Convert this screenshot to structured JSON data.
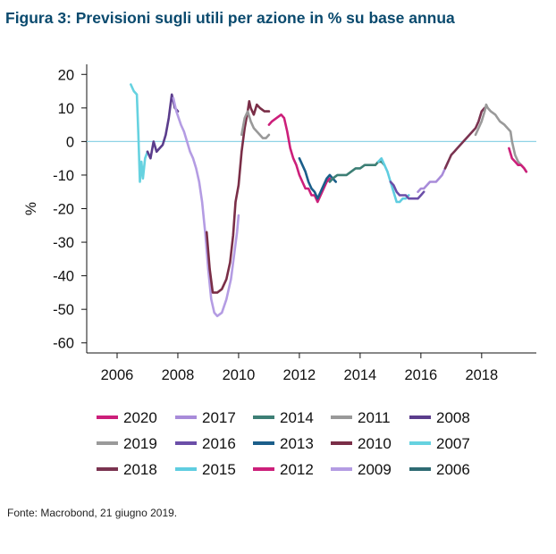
{
  "title": "Figura 3: Previsioni sugli utili per azione in % su base annua",
  "source": "Fonte: Macrobond, 21 giugno 2019.",
  "chart_data": {
    "type": "line",
    "title": "Figura 3: Previsioni sugli utili per azione in % su base annua",
    "xlabel": "",
    "ylabel": "%",
    "xlim": [
      2005.0,
      2019.8
    ],
    "ylim": [
      -63,
      23
    ],
    "xticks": [
      "2006",
      "2008",
      "2010",
      "2012",
      "2014",
      "2016",
      "2018"
    ],
    "yticks": [
      "20",
      "10",
      "0",
      "-10",
      "-20",
      "-30",
      "-40",
      "-50",
      "-60"
    ],
    "grid": false,
    "zero_line": true,
    "legend_position": "bottom",
    "series": [
      {
        "name": "2006",
        "color": "#2e6b73",
        "points": []
      },
      {
        "name": "2007",
        "color": "#66d2e0",
        "points": [
          [
            2006.45,
            17
          ],
          [
            2006.55,
            15
          ],
          [
            2006.65,
            14
          ],
          [
            2006.7,
            2
          ],
          [
            2006.75,
            -12
          ],
          [
            2006.8,
            -6
          ],
          [
            2006.85,
            -11
          ],
          [
            2006.92,
            -5
          ],
          [
            2007.0,
            -3
          ]
        ]
      },
      {
        "name": "2008",
        "color": "#5b3d8c",
        "points": [
          [
            2007.0,
            -3
          ],
          [
            2007.1,
            -5
          ],
          [
            2007.2,
            0
          ],
          [
            2007.3,
            -3
          ],
          [
            2007.4,
            -2
          ],
          [
            2007.5,
            -1
          ],
          [
            2007.6,
            2
          ],
          [
            2007.7,
            7
          ],
          [
            2007.8,
            14
          ],
          [
            2007.9,
            10
          ],
          [
            2008.0,
            9
          ]
        ]
      },
      {
        "name": "2009",
        "color": "#b49ce3",
        "points": [
          [
            2007.85,
            13
          ],
          [
            2007.95,
            9
          ],
          [
            2008.1,
            5
          ],
          [
            2008.2,
            3
          ],
          [
            2008.3,
            0
          ],
          [
            2008.4,
            -3
          ],
          [
            2008.5,
            -5
          ],
          [
            2008.6,
            -8
          ],
          [
            2008.7,
            -12
          ],
          [
            2008.8,
            -18
          ],
          [
            2008.9,
            -27
          ],
          [
            2009.0,
            -38
          ],
          [
            2009.1,
            -47
          ],
          [
            2009.2,
            -51
          ],
          [
            2009.3,
            -52
          ],
          [
            2009.45,
            -51
          ],
          [
            2009.6,
            -47
          ],
          [
            2009.75,
            -41
          ],
          [
            2009.85,
            -34
          ],
          [
            2009.95,
            -27
          ],
          [
            2010.0,
            -22
          ]
        ]
      },
      {
        "name": "2010",
        "color": "#7a2e47",
        "points": [
          [
            2008.95,
            -27
          ],
          [
            2009.05,
            -38
          ],
          [
            2009.15,
            -45
          ],
          [
            2009.3,
            -45
          ],
          [
            2009.45,
            -44
          ],
          [
            2009.6,
            -41
          ],
          [
            2009.72,
            -36
          ],
          [
            2009.82,
            -28
          ],
          [
            2009.9,
            -18
          ],
          [
            2010.0,
            -13
          ],
          [
            2010.1,
            -3
          ],
          [
            2010.2,
            4
          ],
          [
            2010.3,
            9
          ],
          [
            2010.35,
            12
          ],
          [
            2010.4,
            10
          ],
          [
            2010.5,
            8
          ],
          [
            2010.6,
            11
          ],
          [
            2010.7,
            10
          ],
          [
            2010.85,
            9
          ],
          [
            2011.0,
            9
          ]
        ]
      },
      {
        "name": "2011",
        "color": "#999999",
        "points": [
          [
            2010.1,
            2
          ],
          [
            2010.2,
            7
          ],
          [
            2010.3,
            9
          ],
          [
            2010.4,
            6
          ],
          [
            2010.5,
            4
          ],
          [
            2010.6,
            3
          ],
          [
            2010.7,
            2
          ],
          [
            2010.8,
            1
          ],
          [
            2010.9,
            1
          ],
          [
            2011.0,
            2
          ]
        ]
      },
      {
        "name": "2012",
        "color": "#cc1f7a",
        "points": [
          [
            2011.0,
            5
          ],
          [
            2011.1,
            6
          ],
          [
            2011.25,
            7
          ],
          [
            2011.4,
            8
          ],
          [
            2011.5,
            7
          ],
          [
            2011.6,
            3
          ],
          [
            2011.7,
            -2
          ],
          [
            2011.8,
            -5
          ],
          [
            2011.9,
            -7
          ],
          [
            2012.0,
            -10
          ],
          [
            2012.1,
            -12
          ],
          [
            2012.2,
            -14
          ],
          [
            2012.3,
            -14
          ],
          [
            2012.4,
            -16
          ],
          [
            2012.5,
            -16
          ],
          [
            2012.6,
            -18
          ],
          [
            2012.7,
            -16
          ],
          [
            2012.8,
            -14
          ],
          [
            2012.9,
            -12
          ],
          [
            2013.0,
            -11
          ]
        ]
      },
      {
        "name": "2013",
        "color": "#1b5e8a",
        "points": [
          [
            2012.0,
            -5
          ],
          [
            2012.1,
            -7
          ],
          [
            2012.2,
            -9
          ],
          [
            2012.3,
            -12
          ],
          [
            2012.4,
            -14
          ],
          [
            2012.5,
            -15
          ],
          [
            2012.6,
            -17
          ],
          [
            2012.7,
            -15
          ],
          [
            2012.8,
            -13
          ],
          [
            2012.9,
            -11
          ],
          [
            2013.0,
            -10
          ],
          [
            2013.1,
            -11
          ],
          [
            2013.2,
            -12
          ]
        ]
      },
      {
        "name": "2014",
        "color": "#3d7f75",
        "points": [
          [
            2013.0,
            -12
          ],
          [
            2013.1,
            -11
          ],
          [
            2013.25,
            -10
          ],
          [
            2013.4,
            -10
          ],
          [
            2013.55,
            -10
          ],
          [
            2013.7,
            -9
          ],
          [
            2013.85,
            -8
          ],
          [
            2014.0,
            -8
          ],
          [
            2014.15,
            -7
          ],
          [
            2014.3,
            -7
          ],
          [
            2014.5,
            -7
          ],
          [
            2014.6,
            -6
          ],
          [
            2014.7,
            -6
          ],
          [
            2014.8,
            -7
          ]
        ]
      },
      {
        "name": "2015",
        "color": "#5fcde0",
        "points": [
          [
            2014.6,
            -6
          ],
          [
            2014.7,
            -5
          ],
          [
            2014.8,
            -7
          ],
          [
            2014.9,
            -9
          ],
          [
            2015.0,
            -12
          ],
          [
            2015.1,
            -15
          ],
          [
            2015.2,
            -18
          ],
          [
            2015.3,
            -18
          ],
          [
            2015.4,
            -17
          ],
          [
            2015.5,
            -17
          ],
          [
            2015.6,
            -16
          ]
        ]
      },
      {
        "name": "2016",
        "color": "#6b4ea8",
        "points": [
          [
            2015.0,
            -12
          ],
          [
            2015.1,
            -13
          ],
          [
            2015.2,
            -15
          ],
          [
            2015.3,
            -16
          ],
          [
            2015.4,
            -16
          ],
          [
            2015.5,
            -16
          ],
          [
            2015.6,
            -17
          ],
          [
            2015.7,
            -17
          ],
          [
            2015.8,
            -17
          ],
          [
            2015.9,
            -17
          ],
          [
            2016.0,
            -16
          ],
          [
            2016.1,
            -15
          ]
        ]
      },
      {
        "name": "2017",
        "color": "#a88bd9",
        "points": [
          [
            2015.9,
            -15
          ],
          [
            2016.0,
            -14
          ],
          [
            2016.1,
            -14
          ],
          [
            2016.2,
            -13
          ],
          [
            2016.3,
            -12
          ],
          [
            2016.4,
            -12
          ],
          [
            2016.5,
            -12
          ],
          [
            2016.6,
            -11
          ],
          [
            2016.7,
            -10
          ],
          [
            2016.8,
            -8
          ],
          [
            2016.9,
            -6
          ]
        ]
      },
      {
        "name": "2018",
        "color": "#7a3350",
        "points": [
          [
            2016.8,
            -8
          ],
          [
            2016.9,
            -6
          ],
          [
            2017.0,
            -4
          ],
          [
            2017.1,
            -3
          ],
          [
            2017.2,
            -2
          ],
          [
            2017.3,
            -1
          ],
          [
            2017.4,
            0
          ],
          [
            2017.5,
            1
          ],
          [
            2017.6,
            2
          ],
          [
            2017.7,
            3
          ],
          [
            2017.8,
            4
          ],
          [
            2017.9,
            6
          ],
          [
            2018.0,
            9
          ],
          [
            2018.1,
            10
          ]
        ]
      },
      {
        "name": "2019",
        "color": "#9a9a9a",
        "points": [
          [
            2017.8,
            2
          ],
          [
            2017.9,
            4
          ],
          [
            2018.0,
            6
          ],
          [
            2018.1,
            9
          ],
          [
            2018.15,
            11
          ],
          [
            2018.2,
            10
          ],
          [
            2018.3,
            9
          ],
          [
            2018.45,
            8
          ],
          [
            2018.6,
            6
          ],
          [
            2018.75,
            5
          ],
          [
            2018.85,
            4
          ],
          [
            2018.95,
            3
          ],
          [
            2019.0,
            0
          ],
          [
            2019.1,
            -4
          ],
          [
            2019.2,
            -6
          ],
          [
            2019.3,
            -7
          ],
          [
            2019.4,
            -8
          ],
          [
            2019.47,
            -9
          ]
        ]
      },
      {
        "name": "2020",
        "color": "#cc1f7a",
        "points": [
          [
            2018.9,
            -2
          ],
          [
            2019.0,
            -5
          ],
          [
            2019.1,
            -6
          ],
          [
            2019.2,
            -7
          ],
          [
            2019.3,
            -7
          ],
          [
            2019.4,
            -8
          ],
          [
            2019.47,
            -9
          ]
        ]
      }
    ],
    "legend": [
      [
        "2020",
        "2017",
        "2014",
        "2011",
        "2008"
      ],
      [
        "2019",
        "2016",
        "2013",
        "2010",
        "2007"
      ],
      [
        "2018",
        "2015",
        "2012",
        "2009",
        "2006"
      ]
    ]
  }
}
